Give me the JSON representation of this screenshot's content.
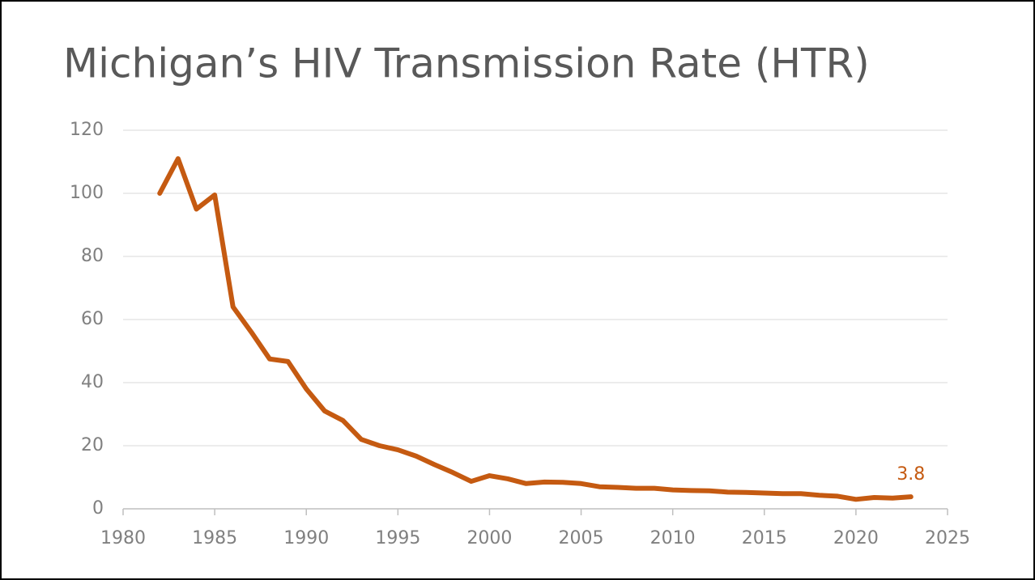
{
  "chart_data": {
    "type": "line",
    "title": "Michigan’s HIV Transmission Rate (HTR)",
    "x": [
      1982,
      1983,
      1984,
      1985,
      1986,
      1987,
      1988,
      1989,
      1990,
      1991,
      1992,
      1993,
      1994,
      1995,
      1996,
      1997,
      1998,
      1999,
      2000,
      2001,
      2002,
      2003,
      2004,
      2005,
      2006,
      2007,
      2008,
      2009,
      2010,
      2011,
      2012,
      2013,
      2014,
      2015,
      2016,
      2017,
      2018,
      2019,
      2020,
      2021,
      2022,
      2023
    ],
    "values": [
      100,
      111,
      95,
      99.5,
      64,
      56,
      47.5,
      46.7,
      38,
      31,
      28,
      22,
      20,
      18.7,
      16.7,
      14,
      11.5,
      8.7,
      10.5,
      9.5,
      8,
      8.5,
      8.4,
      8,
      7,
      6.8,
      6.5,
      6.5,
      6,
      5.8,
      5.7,
      5.3,
      5.2,
      5,
      4.8,
      4.8,
      4.3,
      4,
      3,
      3.6,
      3.4,
      3.8
    ],
    "value_labels": [
      null,
      null,
      null,
      null,
      null,
      null,
      null,
      null,
      null,
      null,
      null,
      null,
      null,
      null,
      null,
      null,
      null,
      null,
      null,
      null,
      null,
      null,
      null,
      null,
      null,
      null,
      null,
      null,
      null,
      null,
      null,
      null,
      null,
      null,
      null,
      null,
      null,
      null,
      null,
      null,
      null,
      "3.8"
    ],
    "color": "#c55a11",
    "xlim": [
      1980,
      2025
    ],
    "xticks": [
      1980,
      1985,
      1990,
      1995,
      2000,
      2005,
      2010,
      2015,
      2020,
      2025
    ],
    "ylim": [
      0,
      120
    ],
    "yticks": [
      0,
      20,
      40,
      60,
      80,
      100,
      120
    ],
    "grid": true
  }
}
